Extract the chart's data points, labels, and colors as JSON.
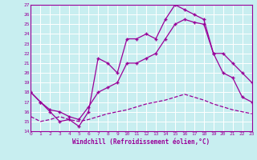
{
  "xlabel": "Windchill (Refroidissement éolien,°C)",
  "bg_color": "#c8eef0",
  "line_color": "#990099",
  "grid_color": "#ffffff",
  "xmin": 0,
  "xmax": 23,
  "ymin": 14,
  "ymax": 27,
  "line1_x": [
    0,
    1,
    2,
    3,
    4,
    5,
    6,
    7,
    8,
    9,
    10,
    11,
    12,
    13,
    14,
    15,
    16,
    17,
    18,
    19,
    20,
    21,
    22,
    23
  ],
  "line1_y": [
    18,
    17,
    16,
    15,
    15.2,
    14.5,
    16,
    21.5,
    21,
    20,
    23.5,
    23.5,
    24,
    23.5,
    25.5,
    27,
    26.5,
    26,
    25.5,
    22,
    22,
    21,
    20,
    19
  ],
  "line2_x": [
    0,
    1,
    2,
    3,
    4,
    5,
    6,
    7,
    8,
    9,
    10,
    11,
    12,
    13,
    14,
    15,
    16,
    17,
    18,
    19,
    20,
    21,
    22,
    23
  ],
  "line2_y": [
    18,
    17,
    16.2,
    16,
    15.5,
    15.2,
    16.5,
    18,
    18.5,
    19,
    21,
    21,
    21.5,
    22,
    23.5,
    25,
    25.5,
    25.2,
    25,
    22,
    20,
    19.5,
    17.5,
    17
  ],
  "line3_x": [
    0,
    1,
    2,
    3,
    4,
    5,
    6,
    7,
    8,
    9,
    10,
    11,
    12,
    13,
    14,
    15,
    16,
    17,
    18,
    19,
    20,
    21,
    22,
    23
  ],
  "line3_y": [
    15.5,
    15,
    15.2,
    15.5,
    15.2,
    15,
    15.2,
    15.5,
    15.8,
    16,
    16.2,
    16.5,
    16.8,
    17,
    17.2,
    17.5,
    17.8,
    17.5,
    17.2,
    16.8,
    16.5,
    16.2,
    16,
    15.8
  ]
}
